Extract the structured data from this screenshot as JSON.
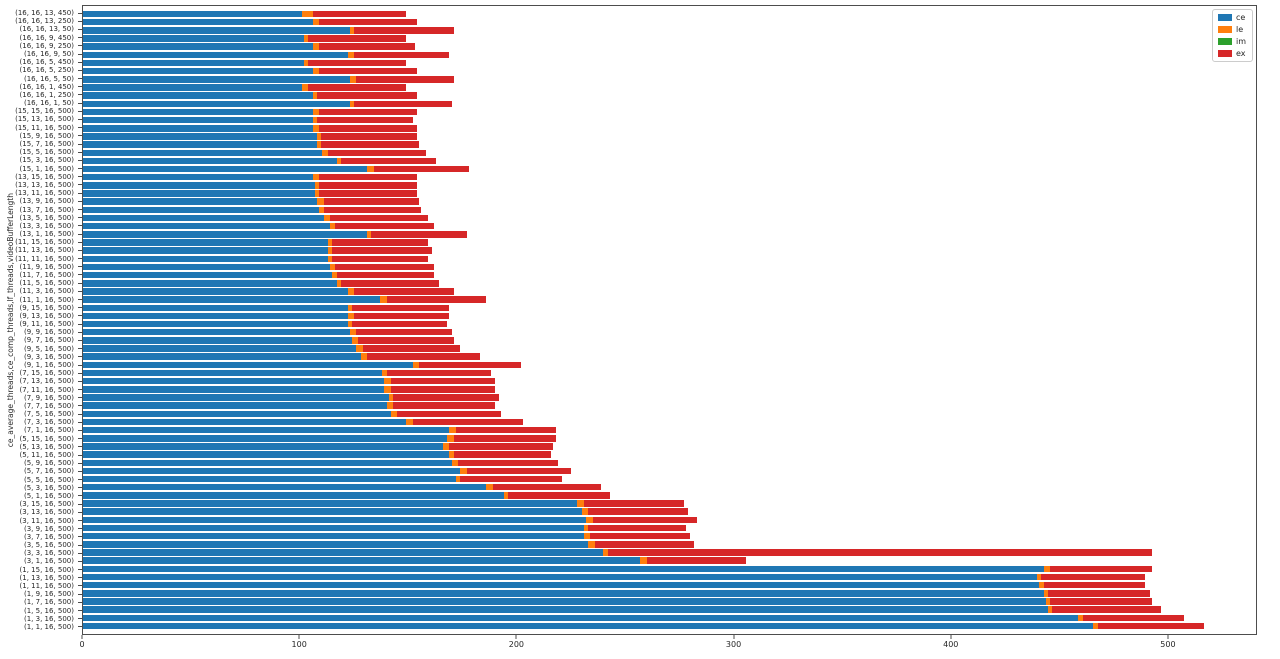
{
  "figure": {
    "background": "#ffffff"
  },
  "chart_data": {
    "type": "bar",
    "orientation": "horizontal",
    "stacked": true,
    "title": "",
    "xlabel": "",
    "ylabel": "ce_average_threads,ce_comp_threads,lf_threads,videoBufferLength",
    "xlim": [
      0,
      541
    ],
    "x_ticks": [
      0,
      100,
      200,
      300,
      400,
      500
    ],
    "grid": false,
    "legend_position": "upper right",
    "categories": [
      "(16, 16, 13, 450)",
      "(16, 16, 13, 250)",
      "(16, 16, 13, 50)",
      "(16, 16, 9, 450)",
      "(16, 16, 9, 250)",
      "(16, 16, 9, 50)",
      "(16, 16, 5, 450)",
      "(16, 16, 5, 250)",
      "(16, 16, 5, 50)",
      "(16, 16, 1, 450)",
      "(16, 16, 1, 250)",
      "(16, 16, 1, 50)",
      "(15, 15, 16, 500)",
      "(15, 13, 16, 500)",
      "(15, 11, 16, 500)",
      "(15, 9, 16, 500)",
      "(15, 7, 16, 500)",
      "(15, 5, 16, 500)",
      "(15, 3, 16, 500)",
      "(15, 1, 16, 500)",
      "(13, 15, 16, 500)",
      "(13, 13, 16, 500)",
      "(13, 11, 16, 500)",
      "(13, 9, 16, 500)",
      "(13, 7, 16, 500)",
      "(13, 5, 16, 500)",
      "(13, 3, 16, 500)",
      "(13, 1, 16, 500)",
      "(11, 15, 16, 500)",
      "(11, 13, 16, 500)",
      "(11, 11, 16, 500)",
      "(11, 9, 16, 500)",
      "(11, 7, 16, 500)",
      "(11, 5, 16, 500)",
      "(11, 3, 16, 500)",
      "(11, 1, 16, 500)",
      "(9, 15, 16, 500)",
      "(9, 13, 16, 500)",
      "(9, 11, 16, 500)",
      "(9, 9, 16, 500)",
      "(9, 7, 16, 500)",
      "(9, 5, 16, 500)",
      "(9, 3, 16, 500)",
      "(9, 1, 16, 500)",
      "(7, 15, 16, 500)",
      "(7, 13, 16, 500)",
      "(7, 11, 16, 500)",
      "(7, 9, 16, 500)",
      "(7, 7, 16, 500)",
      "(7, 5, 16, 500)",
      "(7, 3, 16, 500)",
      "(7, 1, 16, 500)",
      "(5, 15, 16, 500)",
      "(5, 13, 16, 500)",
      "(5, 11, 16, 500)",
      "(5, 9, 16, 500)",
      "(5, 7, 16, 500)",
      "(5, 5, 16, 500)",
      "(5, 3, 16, 500)",
      "(5, 1, 16, 500)",
      "(3, 15, 16, 500)",
      "(3, 13, 16, 500)",
      "(3, 11, 16, 500)",
      "(3, 9, 16, 500)",
      "(3, 7, 16, 500)",
      "(3, 5, 16, 500)",
      "(3, 3, 16, 500)",
      "(3, 1, 16, 500)",
      "(1, 15, 16, 500)",
      "(1, 13, 16, 500)",
      "(1, 11, 16, 500)",
      "(1, 9, 16, 500)",
      "(1, 7, 16, 500)",
      "(1, 5, 16, 500)",
      "(1, 3, 16, 500)",
      "(1, 1, 16, 500)"
    ],
    "series": [
      {
        "name": "ce",
        "color": "#1f77b4",
        "values": [
          101,
          106,
          123,
          102,
          106,
          122,
          102,
          106,
          123,
          101,
          106,
          123,
          106,
          106,
          106,
          108,
          108,
          110,
          117,
          131,
          106,
          107,
          107,
          108,
          109,
          111,
          114,
          131,
          113,
          113,
          113,
          114,
          115,
          117,
          122,
          137,
          122,
          122,
          122,
          123,
          124,
          126,
          128,
          152,
          138,
          139,
          139,
          141,
          140,
          142,
          149,
          169,
          168,
          166,
          169,
          170,
          174,
          172,
          186,
          194,
          228,
          230,
          232,
          231,
          231,
          233,
          240,
          257,
          443,
          440,
          441,
          443,
          444,
          445,
          459,
          466
        ]
      },
      {
        "name": "le",
        "color": "#ff7f0e",
        "values": [
          5,
          3,
          2,
          2,
          3,
          3,
          2,
          3,
          3,
          3,
          2,
          2,
          3,
          2,
          3,
          2,
          2,
          3,
          2,
          3,
          3,
          2,
          2,
          3,
          2,
          3,
          2,
          2,
          2,
          2,
          2,
          2,
          2,
          2,
          3,
          3,
          2,
          3,
          2,
          3,
          3,
          3,
          3,
          3,
          2,
          3,
          3,
          2,
          3,
          3,
          3,
          3,
          3,
          3,
          2,
          3,
          3,
          2,
          3,
          2,
          3,
          3,
          3,
          2,
          3,
          3,
          2,
          3,
          3,
          2,
          2,
          2,
          2,
          2,
          2,
          2
        ]
      },
      {
        "name": "im",
        "color": "#2ca02c",
        "values": [
          0,
          0,
          0,
          0,
          0,
          0,
          0,
          0,
          0,
          0,
          0,
          0,
          0,
          0,
          0,
          0,
          0,
          0,
          0,
          0,
          0,
          0,
          0,
          0,
          0,
          0,
          0,
          0,
          0,
          0,
          0,
          0,
          0,
          0,
          0,
          0,
          0,
          0,
          0,
          0,
          0,
          0,
          0,
          0,
          0,
          0,
          0,
          0,
          0,
          0,
          0,
          0,
          0,
          0,
          0,
          0,
          0,
          0,
          0,
          0,
          0,
          0,
          0,
          0,
          0,
          0,
          0,
          0,
          0,
          0,
          0,
          0,
          0,
          0,
          0,
          0
        ]
      },
      {
        "name": "ex",
        "color": "#d62728",
        "values": [
          43,
          45,
          46,
          45,
          44,
          44,
          45,
          45,
          45,
          45,
          46,
          45,
          45,
          44,
          45,
          44,
          45,
          45,
          44,
          44,
          45,
          45,
          45,
          44,
          45,
          45,
          46,
          44,
          44,
          46,
          44,
          46,
          45,
          45,
          46,
          46,
          45,
          44,
          44,
          44,
          44,
          45,
          52,
          47,
          48,
          48,
          48,
          49,
          47,
          48,
          51,
          46,
          47,
          48,
          45,
          46,
          48,
          47,
          50,
          47,
          46,
          46,
          48,
          45,
          46,
          46,
          251,
          46,
          47,
          48,
          47,
          47,
          47,
          50,
          47,
          49
        ]
      }
    ]
  }
}
